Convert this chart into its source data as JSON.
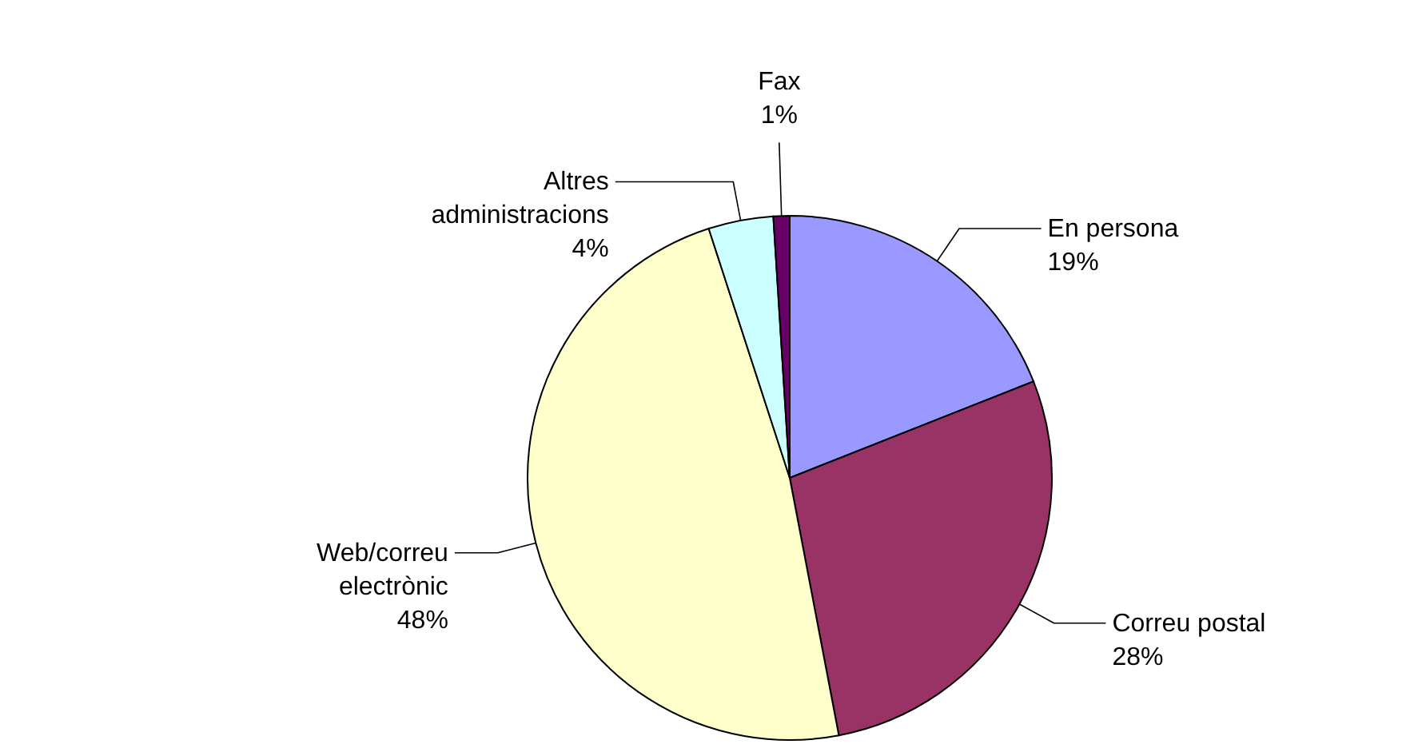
{
  "chart_data": {
    "type": "pie",
    "categories": [
      "En persona",
      "Correu postal",
      "Web/correu electrònic",
      "Altres administracions",
      "Fax"
    ],
    "values": [
      19,
      28,
      48,
      4,
      1
    ],
    "value_labels": [
      "19%",
      "28%",
      "48%",
      "4%",
      "1%"
    ],
    "colors": [
      "#9999ff",
      "#993366",
      "#ffffcc",
      "#ccffff",
      "#660066"
    ]
  }
}
